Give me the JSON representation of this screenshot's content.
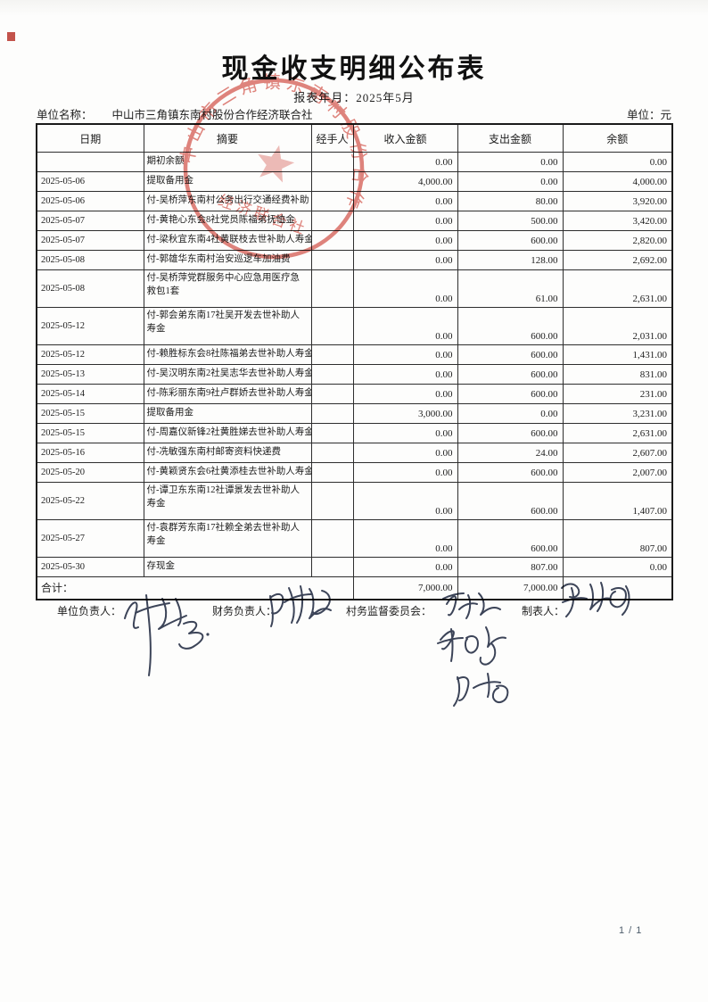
{
  "page": {
    "title": "现金收支明细公布表",
    "report_period": "报表年月：2025年5月",
    "unit_name_label": "单位名称：",
    "unit_name": "中山市三角镇东南村股份合作经济联合社",
    "currency_label": "单位：元",
    "page_number": "1 / 1"
  },
  "seal": {
    "arc_text": "中山市三角镇东南村股份合作",
    "inner_text": "经济联合社",
    "color": "#d0453a"
  },
  "table": {
    "headers": [
      "日期",
      "摘要",
      "经手人",
      "收入金额",
      "支出金额",
      "余额"
    ],
    "rows": [
      {
        "date": "",
        "summary": "期初余额",
        "handler": "",
        "income": "0.00",
        "expense": "0.00",
        "balance": "0.00",
        "tall": false
      },
      {
        "date": "2025-05-06",
        "summary": "提取备用金",
        "handler": "",
        "income": "4,000.00",
        "expense": "0.00",
        "balance": "4,000.00",
        "tall": false
      },
      {
        "date": "2025-05-06",
        "summary": "付-吴桥萍东南村公务出行交通经费补助",
        "handler": "",
        "income": "0.00",
        "expense": "80.00",
        "balance": "3,920.00",
        "tall": false
      },
      {
        "date": "2025-05-07",
        "summary": "付-黄艳心东会8社党员陈福弟抚恤金",
        "handler": "",
        "income": "0.00",
        "expense": "500.00",
        "balance": "3,420.00",
        "tall": false
      },
      {
        "date": "2025-05-07",
        "summary": "付-梁秋宜东南4社黄联枝去世补助人寿金",
        "handler": "",
        "income": "0.00",
        "expense": "600.00",
        "balance": "2,820.00",
        "tall": false
      },
      {
        "date": "2025-05-08",
        "summary": "付-郭雄华东南村治安巡逻车加油费",
        "handler": "",
        "income": "0.00",
        "expense": "128.00",
        "balance": "2,692.00",
        "tall": false
      },
      {
        "date": "2025-05-08",
        "summary": "付-吴桥萍党群服务中心应急用医疗急救包1套",
        "handler": "",
        "income": "0.00",
        "expense": "61.00",
        "balance": "2,631.00",
        "tall": true
      },
      {
        "date": "2025-05-12",
        "summary": "付-郭会弟东南17社吴开发去世补助人寿金",
        "handler": "",
        "income": "0.00",
        "expense": "600.00",
        "balance": "2,031.00",
        "tall": true
      },
      {
        "date": "2025-05-12",
        "summary": "付-赖胜标东会8社陈福弟去世补助人寿金",
        "handler": "",
        "income": "0.00",
        "expense": "600.00",
        "balance": "1,431.00",
        "tall": false
      },
      {
        "date": "2025-05-13",
        "summary": "付-吴汉明东南2社吴志华去世补助人寿金",
        "handler": "",
        "income": "0.00",
        "expense": "600.00",
        "balance": "831.00",
        "tall": false
      },
      {
        "date": "2025-05-14",
        "summary": "付-陈彩丽东南9社卢群娇去世补助人寿金",
        "handler": "",
        "income": "0.00",
        "expense": "600.00",
        "balance": "231.00",
        "tall": false
      },
      {
        "date": "2025-05-15",
        "summary": "提取备用金",
        "handler": "",
        "income": "3,000.00",
        "expense": "0.00",
        "balance": "3,231.00",
        "tall": false
      },
      {
        "date": "2025-05-15",
        "summary": "付-周嘉仪新锋2社黄胜娣去世补助人寿金",
        "handler": "",
        "income": "0.00",
        "expense": "600.00",
        "balance": "2,631.00",
        "tall": false
      },
      {
        "date": "2025-05-16",
        "summary": "付-冼敏强东南村邮寄资料快递费",
        "handler": "",
        "income": "0.00",
        "expense": "24.00",
        "balance": "2,607.00",
        "tall": false
      },
      {
        "date": "2025-05-20",
        "summary": "付-黄颖贤东会6社黄添桂去世补助人寿金",
        "handler": "",
        "income": "0.00",
        "expense": "600.00",
        "balance": "2,007.00",
        "tall": false
      },
      {
        "date": "2025-05-22",
        "summary": "付-谭卫东东南12社谭景发去世补助人寿金",
        "handler": "",
        "income": "0.00",
        "expense": "600.00",
        "balance": "1,407.00",
        "tall": true
      },
      {
        "date": "2025-05-27",
        "summary": "付-袁群芳东南17社赖全弟去世补助人寿金",
        "handler": "",
        "income": "0.00",
        "expense": "600.00",
        "balance": "807.00",
        "tall": true
      },
      {
        "date": "2025-05-30",
        "summary": "存现金",
        "handler": "",
        "income": "0.00",
        "expense": "807.00",
        "balance": "0.00",
        "tall": false
      }
    ],
    "total": {
      "label": "合计：",
      "income": "7,000.00",
      "expense": "7,000.00",
      "balance": ""
    }
  },
  "footer": {
    "signers": [
      {
        "label": "单位负责人："
      },
      {
        "label": "财务负责人："
      },
      {
        "label": "村务监督委员会："
      },
      {
        "label": "制表人："
      }
    ]
  }
}
